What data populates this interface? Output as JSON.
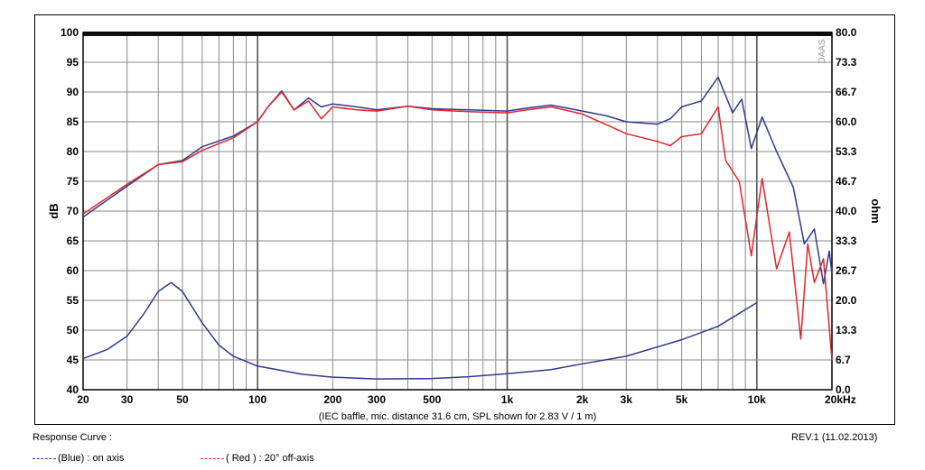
{
  "chart_data": {
    "type": "line",
    "x_scale": "log",
    "xlim": [
      20,
      20000
    ],
    "ylim_left": [
      40,
      100
    ],
    "ylim_right": [
      0,
      80
    ],
    "ylabel_left": "dB",
    "ylabel_right": "ohm",
    "x_ticks": [
      {
        "v": 20,
        "label": "20"
      },
      {
        "v": 30,
        "label": "30"
      },
      {
        "v": 50,
        "label": "50"
      },
      {
        "v": 100,
        "label": "100"
      },
      {
        "v": 200,
        "label": "200"
      },
      {
        "v": 300,
        "label": "300"
      },
      {
        "v": 500,
        "label": "500"
      },
      {
        "v": 1000,
        "label": "1k"
      },
      {
        "v": 2000,
        "label": "2k"
      },
      {
        "v": 3000,
        "label": "3k"
      },
      {
        "v": 5000,
        "label": "5k"
      },
      {
        "v": 10000,
        "label": "10k"
      },
      {
        "v": 20000,
        "label": "20kHz"
      }
    ],
    "y_ticks_left": [
      "40",
      "45",
      "50",
      "55",
      "60",
      "65",
      "70",
      "75",
      "80",
      "85",
      "90",
      "95",
      "100"
    ],
    "y_ticks_right": [
      "0.0",
      "6.7",
      "13.3",
      "20.0",
      "26.7",
      "33.3",
      "40.0",
      "46.7",
      "53.3",
      "60.0",
      "66.7",
      "73.3",
      "80.0"
    ],
    "grid": true,
    "watermark": "DAAS",
    "xlabel": "(IEC baffle, mic. distance 31.6 cm, SPL shown for 2.83 V / 1 m)",
    "series": [
      {
        "name": "(Blue)  : on axis",
        "color": "#2e3a8c",
        "points": [
          [
            20,
            69
          ],
          [
            30,
            74.2
          ],
          [
            40,
            77.8
          ],
          [
            50,
            78.5
          ],
          [
            60,
            80.8
          ],
          [
            80,
            82.6
          ],
          [
            100,
            85
          ],
          [
            110,
            87.5
          ],
          [
            125,
            90.2
          ],
          [
            140,
            87
          ],
          [
            160,
            89
          ],
          [
            180,
            87.5
          ],
          [
            200,
            88
          ],
          [
            250,
            87.5
          ],
          [
            300,
            87
          ],
          [
            400,
            87.6
          ],
          [
            500,
            87.2
          ],
          [
            700,
            87
          ],
          [
            1000,
            86.8
          ],
          [
            1200,
            87.3
          ],
          [
            1500,
            87.8
          ],
          [
            2000,
            86.8
          ],
          [
            2500,
            86
          ],
          [
            3000,
            85
          ],
          [
            4000,
            84.6
          ],
          [
            4500,
            85.5
          ],
          [
            5000,
            87.5
          ],
          [
            6000,
            88.5
          ],
          [
            7000,
            92.5
          ],
          [
            8000,
            86.5
          ],
          [
            8700,
            88.8
          ],
          [
            9500,
            80.5
          ],
          [
            10500,
            85.8
          ],
          [
            12000,
            80
          ],
          [
            14000,
            74
          ],
          [
            15500,
            64.5
          ],
          [
            17000,
            67
          ],
          [
            18500,
            57.8
          ],
          [
            19500,
            63.3
          ],
          [
            20000,
            59.5
          ]
        ]
      },
      {
        "name": "( Red ) : 20° off-axis",
        "color": "#e0262b",
        "points": [
          [
            20,
            69.5
          ],
          [
            30,
            74.5
          ],
          [
            40,
            77.8
          ],
          [
            50,
            78.3
          ],
          [
            60,
            80.2
          ],
          [
            80,
            82.3
          ],
          [
            100,
            85
          ],
          [
            110,
            87.5
          ],
          [
            125,
            90
          ],
          [
            140,
            87
          ],
          [
            160,
            88.5
          ],
          [
            180,
            85.5
          ],
          [
            200,
            87.5
          ],
          [
            250,
            87
          ],
          [
            300,
            86.8
          ],
          [
            400,
            87.6
          ],
          [
            500,
            87
          ],
          [
            700,
            86.7
          ],
          [
            1000,
            86.5
          ],
          [
            1200,
            87
          ],
          [
            1500,
            87.5
          ],
          [
            2000,
            86.3
          ],
          [
            2500,
            84.5
          ],
          [
            3000,
            83
          ],
          [
            4000,
            81.7
          ],
          [
            4500,
            81
          ],
          [
            5000,
            82.5
          ],
          [
            6000,
            83
          ],
          [
            7000,
            87.5
          ],
          [
            7500,
            78.5
          ],
          [
            8500,
            75
          ],
          [
            9500,
            62.5
          ],
          [
            10500,
            75.5
          ],
          [
            12000,
            60.3
          ],
          [
            13500,
            66.5
          ],
          [
            15000,
            48.5
          ],
          [
            16000,
            64.5
          ],
          [
            17000,
            58
          ],
          [
            18500,
            62
          ],
          [
            20000,
            45
          ]
        ]
      },
      {
        "name": "impedance",
        "axis": "right",
        "color": "#2e3a8c",
        "points": [
          [
            20,
            7
          ],
          [
            25,
            9
          ],
          [
            30,
            12
          ],
          [
            35,
            17
          ],
          [
            40,
            22
          ],
          [
            45,
            24
          ],
          [
            50,
            22
          ],
          [
            60,
            15
          ],
          [
            70,
            10
          ],
          [
            80,
            7.5
          ],
          [
            100,
            5.3
          ],
          [
            150,
            3.5
          ],
          [
            200,
            2.8
          ],
          [
            300,
            2.4
          ],
          [
            500,
            2.5
          ],
          [
            700,
            2.9
          ],
          [
            1000,
            3.6
          ],
          [
            1500,
            4.5
          ],
          [
            2000,
            5.8
          ],
          [
            3000,
            7.5
          ],
          [
            5000,
            11.2
          ],
          [
            7000,
            14.2
          ],
          [
            10000,
            19.5
          ]
        ]
      }
    ]
  },
  "footer": {
    "title": "Response Curve :",
    "revision": "REV.1 (11.02.2013)",
    "legend_blue": "(Blue)  : on axis",
    "legend_red": "( Red ) : 20° off-axis"
  }
}
